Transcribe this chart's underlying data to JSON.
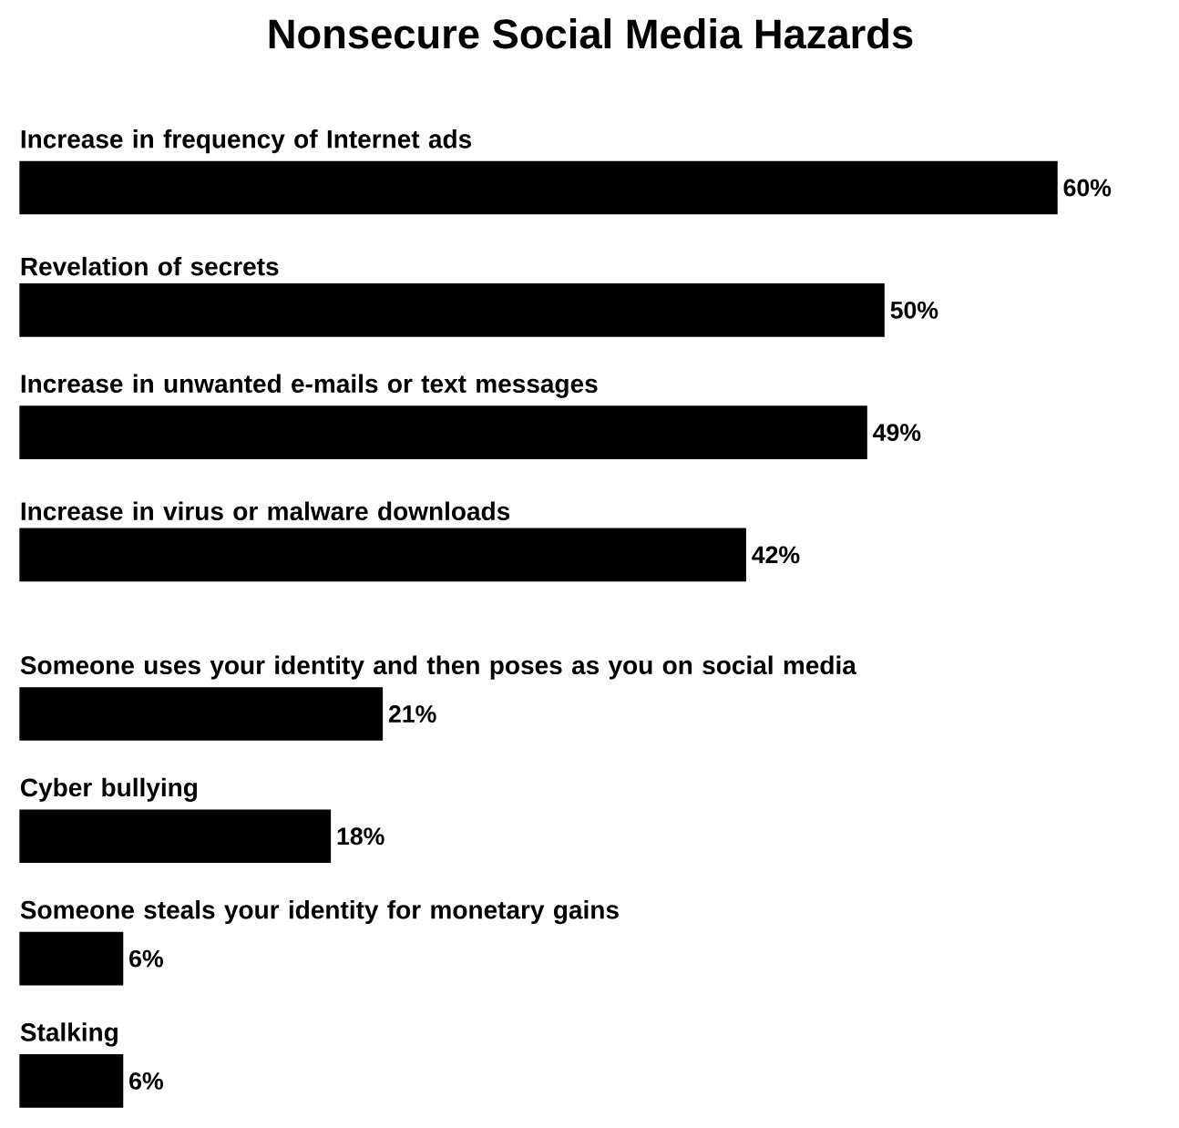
{
  "chart_data": {
    "type": "bar",
    "orientation": "horizontal",
    "title": "Nonsecure Social Media Hazards",
    "categories": [
      "Increase in frequency of Internet ads",
      "Revelation of secrets",
      "Increase in unwanted e-mails or text messages",
      "Increase in virus or malware downloads",
      "Someone uses your identity and then poses as you on social media",
      "Cyber bullying",
      "Someone steals your identity for monetary gains",
      "Stalking"
    ],
    "values": [
      60,
      50,
      49,
      42,
      21,
      18,
      6,
      6
    ],
    "value_labels": [
      "60%",
      "50%",
      "49%",
      "42%",
      "21%",
      "18%",
      "6%",
      "6%"
    ],
    "color": "#000000"
  }
}
